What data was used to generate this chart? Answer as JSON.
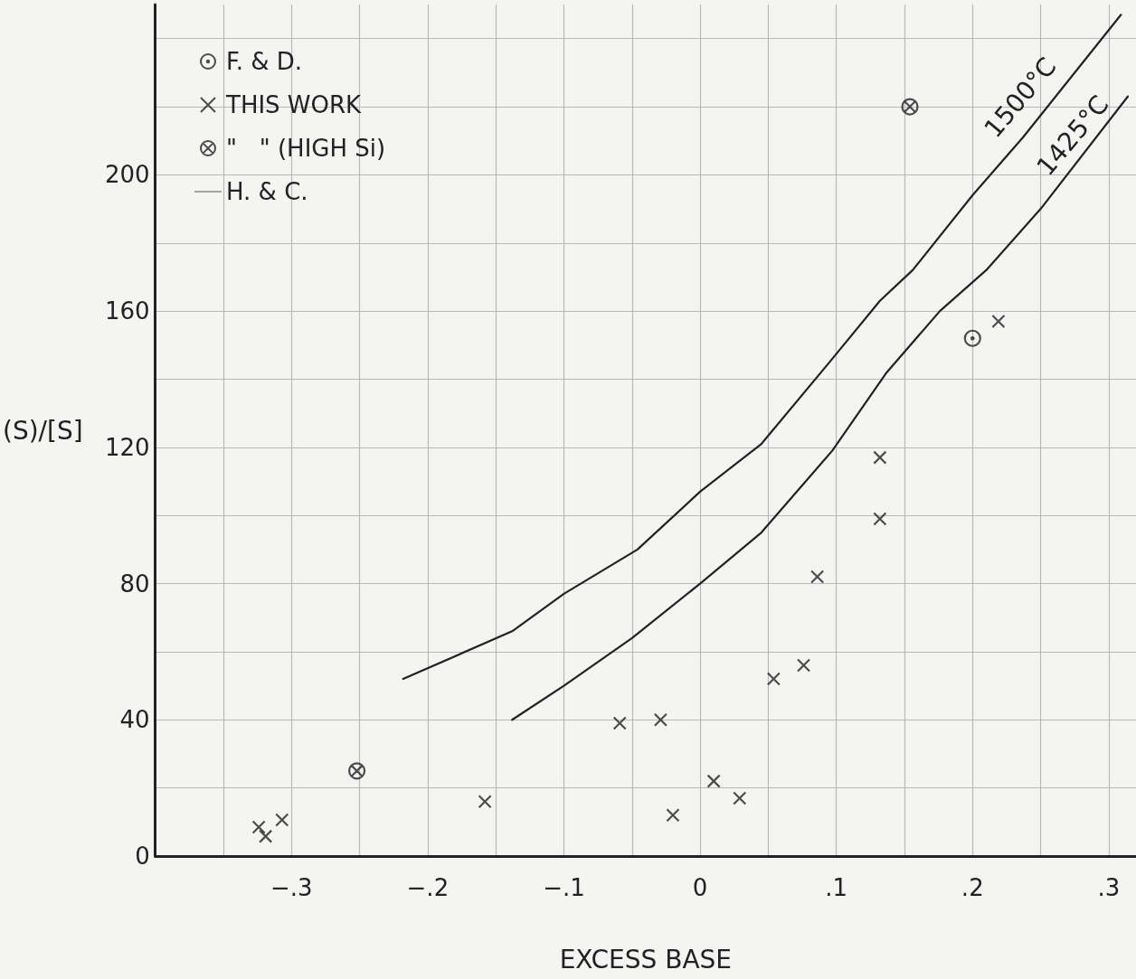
{
  "chart_data": {
    "type": "scatter",
    "xlabel": "EXCESS BASE",
    "ylabel": "(S)/[S]",
    "xlim": [
      -0.4,
      0.32
    ],
    "ylim": [
      0,
      250
    ],
    "xticks": [
      {
        "value": -0.35,
        "label": null
      },
      {
        "value": -0.3,
        "label": "−.3"
      },
      {
        "value": -0.25,
        "label": null
      },
      {
        "value": -0.2,
        "label": "−.2"
      },
      {
        "value": -0.15,
        "label": null
      },
      {
        "value": -0.1,
        "label": "−.1"
      },
      {
        "value": -0.05,
        "label": null
      },
      0,
      {
        "value": 0.05,
        "label": null
      },
      {
        "value": 0.1,
        "label": ".1"
      },
      {
        "value": 0.15,
        "label": null
      },
      {
        "value": 0.2,
        "label": ".2"
      },
      {
        "value": 0.25,
        "label": null
      },
      {
        "value": 0.3,
        "label": ".3"
      }
    ],
    "yticks": [
      0,
      {
        "value": 20,
        "label": null
      },
      40,
      {
        "value": 60,
        "label": null
      },
      80,
      {
        "value": 100,
        "label": null
      },
      120,
      {
        "value": 140,
        "label": null
      },
      160,
      {
        "value": 180,
        "label": null
      },
      200,
      {
        "value": 220,
        "label": null
      },
      {
        "value": 240,
        "label": null
      }
    ],
    "grid": true,
    "legend": "top left",
    "series": [
      {
        "name": "F. & D.",
        "color": "#222222",
        "marker": "circle",
        "x": [
          0.2
        ],
        "values": [
          152
        ]
      },
      {
        "name": "THIS WORK",
        "color": "#222222",
        "marker": "cross",
        "x": [
          -0.324,
          -0.319,
          -0.307,
          -0.158,
          -0.059,
          -0.029,
          -0.02,
          0.01,
          0.029,
          0.054,
          0.076,
          0.086,
          0.132,
          0.132,
          0.219
        ],
        "values": [
          8.5,
          5.8,
          10.6,
          16,
          39,
          40,
          12,
          22,
          17,
          52,
          56,
          82,
          99,
          117,
          157
        ]
      },
      {
        "name": "\"   \" (HIGH Si)",
        "color": "#222222",
        "x": [
          -0.252,
          0.154
        ],
        "values": [
          25,
          220
        ]
      },
      {
        "name": "H. & C.",
        "type": "line",
        "color": "#222222",
        "marker": "none",
        "line_style": "solid",
        "x": [
          -0.218,
          -0.138,
          -0.1,
          -0.046,
          0,
          0.045,
          0.095,
          0.132,
          0.156,
          0.2,
          0.237,
          0.309
        ],
        "values": [
          52,
          66,
          77,
          90,
          107,
          121,
          145,
          163,
          172,
          194,
          211,
          247
        ]
      },
      {
        "type": "line",
        "color": "#222222",
        "marker": "none",
        "line_style": "solid",
        "x": [
          -0.138,
          -0.1,
          -0.05,
          0,
          0.045,
          0.097,
          0.137,
          0.176,
          0.21,
          0.25,
          0.314
        ],
        "values": [
          40,
          50,
          64,
          80,
          95,
          119,
          142,
          160,
          172,
          190,
          223
        ]
      }
    ],
    "annotations": [
      "1500°C",
      "1425°C"
    ]
  }
}
